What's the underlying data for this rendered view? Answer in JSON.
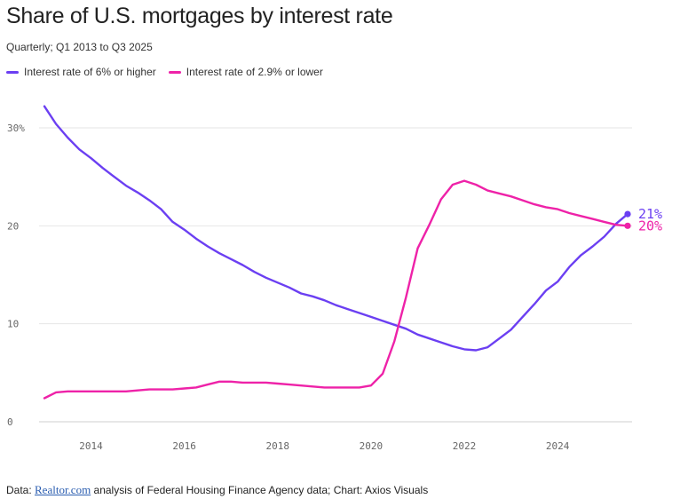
{
  "header": {
    "title": "Share of U.S. mortgages by interest rate",
    "subtitle": "Quarterly; Q1 2013 to Q3 2025"
  },
  "legend": {
    "items": [
      {
        "label": "Interest rate of 6% or higher",
        "color": "#6b3ff2"
      },
      {
        "label": "Interest rate of 2.9% or lower",
        "color": "#ee22a8"
      }
    ]
  },
  "footer": {
    "prefix": "Data: ",
    "link_text": "Realtor.com",
    "suffix": " analysis of Federal Housing Finance Agency data; Chart: Axios Visuals"
  },
  "chart_data": {
    "type": "line",
    "title": "Share of U.S. mortgages by interest rate",
    "subtitle": "Quarterly; Q1 2013 to Q3 2025",
    "xlabel": "",
    "ylabel": "",
    "xlim": [
      2013.0,
      2025.5
    ],
    "ylim": [
      0,
      30
    ],
    "grid": true,
    "legend_position": "top-left",
    "x_ticks": [
      2014,
      2016,
      2018,
      2020,
      2022,
      2024
    ],
    "x_tick_labels": [
      "2014",
      "2016",
      "2018",
      "2020",
      "2022",
      "2024"
    ],
    "y_ticks": [
      0,
      10,
      20,
      30
    ],
    "y_tick_labels": [
      "0",
      "10",
      "20",
      "30%"
    ],
    "x": [
      2013.0,
      2013.25,
      2013.5,
      2013.75,
      2014.0,
      2014.25,
      2014.5,
      2014.75,
      2015.0,
      2015.25,
      2015.5,
      2015.75,
      2016.0,
      2016.25,
      2016.5,
      2016.75,
      2017.0,
      2017.25,
      2017.5,
      2017.75,
      2018.0,
      2018.25,
      2018.5,
      2018.75,
      2019.0,
      2019.25,
      2019.5,
      2019.75,
      2020.0,
      2020.25,
      2020.5,
      2020.75,
      2021.0,
      2021.25,
      2021.5,
      2021.75,
      2022.0,
      2022.25,
      2022.5,
      2022.75,
      2023.0,
      2023.25,
      2023.5,
      2023.75,
      2024.0,
      2024.25,
      2024.5,
      2024.75,
      2025.0,
      2025.25,
      2025.5
    ],
    "series": [
      {
        "name": "Interest rate of 6% or higher",
        "color": "#6b3ff2",
        "end_label": "21%",
        "values": [
          32.2,
          30.4,
          29.0,
          27.8,
          26.9,
          25.9,
          25.0,
          24.1,
          23.4,
          22.6,
          21.7,
          20.4,
          19.6,
          18.7,
          17.9,
          17.2,
          16.6,
          16.0,
          15.3,
          14.7,
          14.2,
          13.7,
          13.1,
          12.8,
          12.4,
          11.9,
          11.5,
          11.1,
          10.7,
          10.3,
          9.9,
          9.5,
          8.9,
          8.5,
          8.1,
          7.7,
          7.4,
          7.3,
          7.6,
          8.5,
          9.4,
          10.7,
          12.0,
          13.4,
          14.3,
          15.8,
          17.0,
          17.9,
          18.9,
          20.2,
          21.2
        ]
      },
      {
        "name": "Interest rate of 2.9% or lower",
        "color": "#ee22a8",
        "end_label": "20%",
        "values": [
          2.4,
          3.0,
          3.1,
          3.1,
          3.1,
          3.1,
          3.1,
          3.1,
          3.2,
          3.3,
          3.3,
          3.3,
          3.4,
          3.5,
          3.8,
          4.1,
          4.1,
          4.0,
          4.0,
          4.0,
          3.9,
          3.8,
          3.7,
          3.6,
          3.5,
          3.5,
          3.5,
          3.5,
          3.7,
          4.9,
          8.2,
          12.7,
          17.7,
          20.1,
          22.7,
          24.2,
          24.6,
          24.2,
          23.6,
          23.3,
          23.0,
          22.6,
          22.2,
          21.9,
          21.7,
          21.3,
          21.0,
          20.7,
          20.4,
          20.1,
          20.0
        ]
      }
    ]
  }
}
